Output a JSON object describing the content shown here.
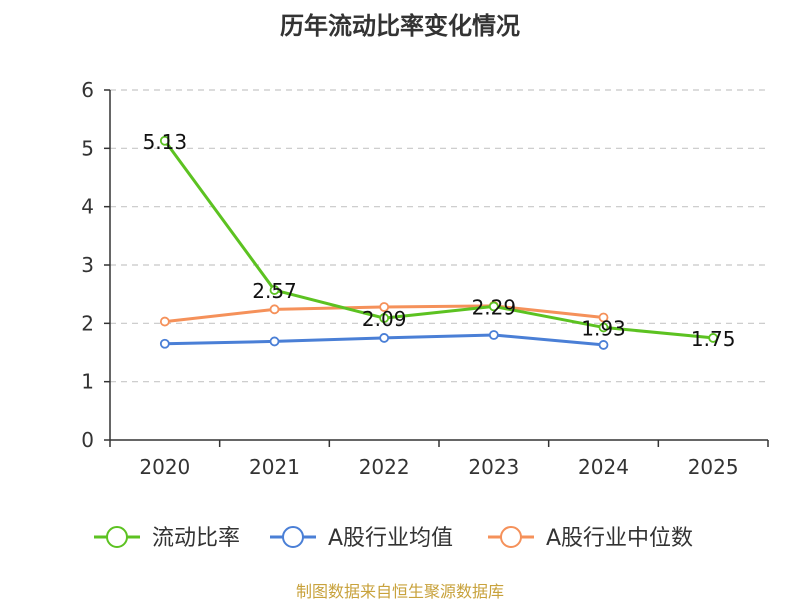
{
  "chart_data": {
    "type": "line",
    "title": "历年流动比率变化情况",
    "categories": [
      "2020",
      "2021",
      "2022",
      "2023",
      "2024",
      "2025"
    ],
    "ylim": [
      0,
      6
    ],
    "yticks": [
      0,
      1,
      2,
      3,
      4,
      5,
      6
    ],
    "grid": true,
    "legend_position": "bottom",
    "series": [
      {
        "name": "流动比率",
        "color": "#5cc221",
        "values": [
          5.13,
          2.57,
          2.09,
          2.29,
          1.93,
          1.75
        ],
        "labels": [
          "5.13",
          "2.57",
          "2.09",
          "2.29",
          "1.93",
          "1.75"
        ]
      },
      {
        "name": "A股行业均值",
        "color": "#4a7fd6",
        "values": [
          1.65,
          1.69,
          1.75,
          1.8,
          1.63,
          null
        ]
      },
      {
        "name": "A股行业中位数",
        "color": "#f5915a",
        "values": [
          2.03,
          2.24,
          2.28,
          2.3,
          2.1,
          null
        ]
      }
    ]
  },
  "source": "制图数据来自恒生聚源数据库"
}
